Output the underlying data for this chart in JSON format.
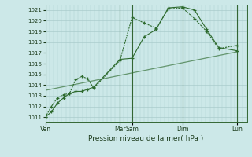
{
  "xlabel": "Pression niveau de la mer( hPa )",
  "ylim": [
    1010.5,
    1021.5
  ],
  "yticks": [
    1011,
    1012,
    1013,
    1014,
    1015,
    1016,
    1017,
    1018,
    1019,
    1020,
    1021
  ],
  "bg_color": "#cce8e8",
  "grid_color": "#aacccc",
  "line_color": "#2d6a2d",
  "sep_color": "#336633",
  "day_labels": [
    "Ven",
    "Mar",
    "Sam",
    "Dim",
    "Lun"
  ],
  "day_x": [
    0,
    37,
    43,
    68,
    95
  ],
  "xlim": [
    0,
    100
  ],
  "line1_x": [
    0,
    3,
    6,
    9,
    12,
    15,
    18,
    21,
    24,
    37,
    43,
    49,
    55,
    61,
    68,
    74,
    80,
    86,
    95
  ],
  "line1_y": [
    1011.0,
    1011.5,
    1012.3,
    1012.8,
    1013.2,
    1013.4,
    1013.4,
    1013.6,
    1013.8,
    1016.4,
    1016.5,
    1018.5,
    1019.2,
    1021.2,
    1021.3,
    1021.0,
    1019.2,
    1017.5,
    1017.2
  ],
  "line2_x": [
    0,
    3,
    6,
    9,
    12,
    15,
    18,
    21,
    24,
    37,
    43,
    49,
    55,
    61,
    68,
    74,
    80,
    86,
    95
  ],
  "line2_y": [
    1011.0,
    1012.0,
    1012.8,
    1013.1,
    1013.2,
    1014.5,
    1014.8,
    1014.6,
    1013.7,
    1016.3,
    1020.3,
    1019.8,
    1019.3,
    1021.1,
    1021.2,
    1020.2,
    1019.0,
    1017.4,
    1017.7
  ],
  "line3_x": [
    0,
    95
  ],
  "line3_y": [
    1013.5,
    1017.1
  ]
}
